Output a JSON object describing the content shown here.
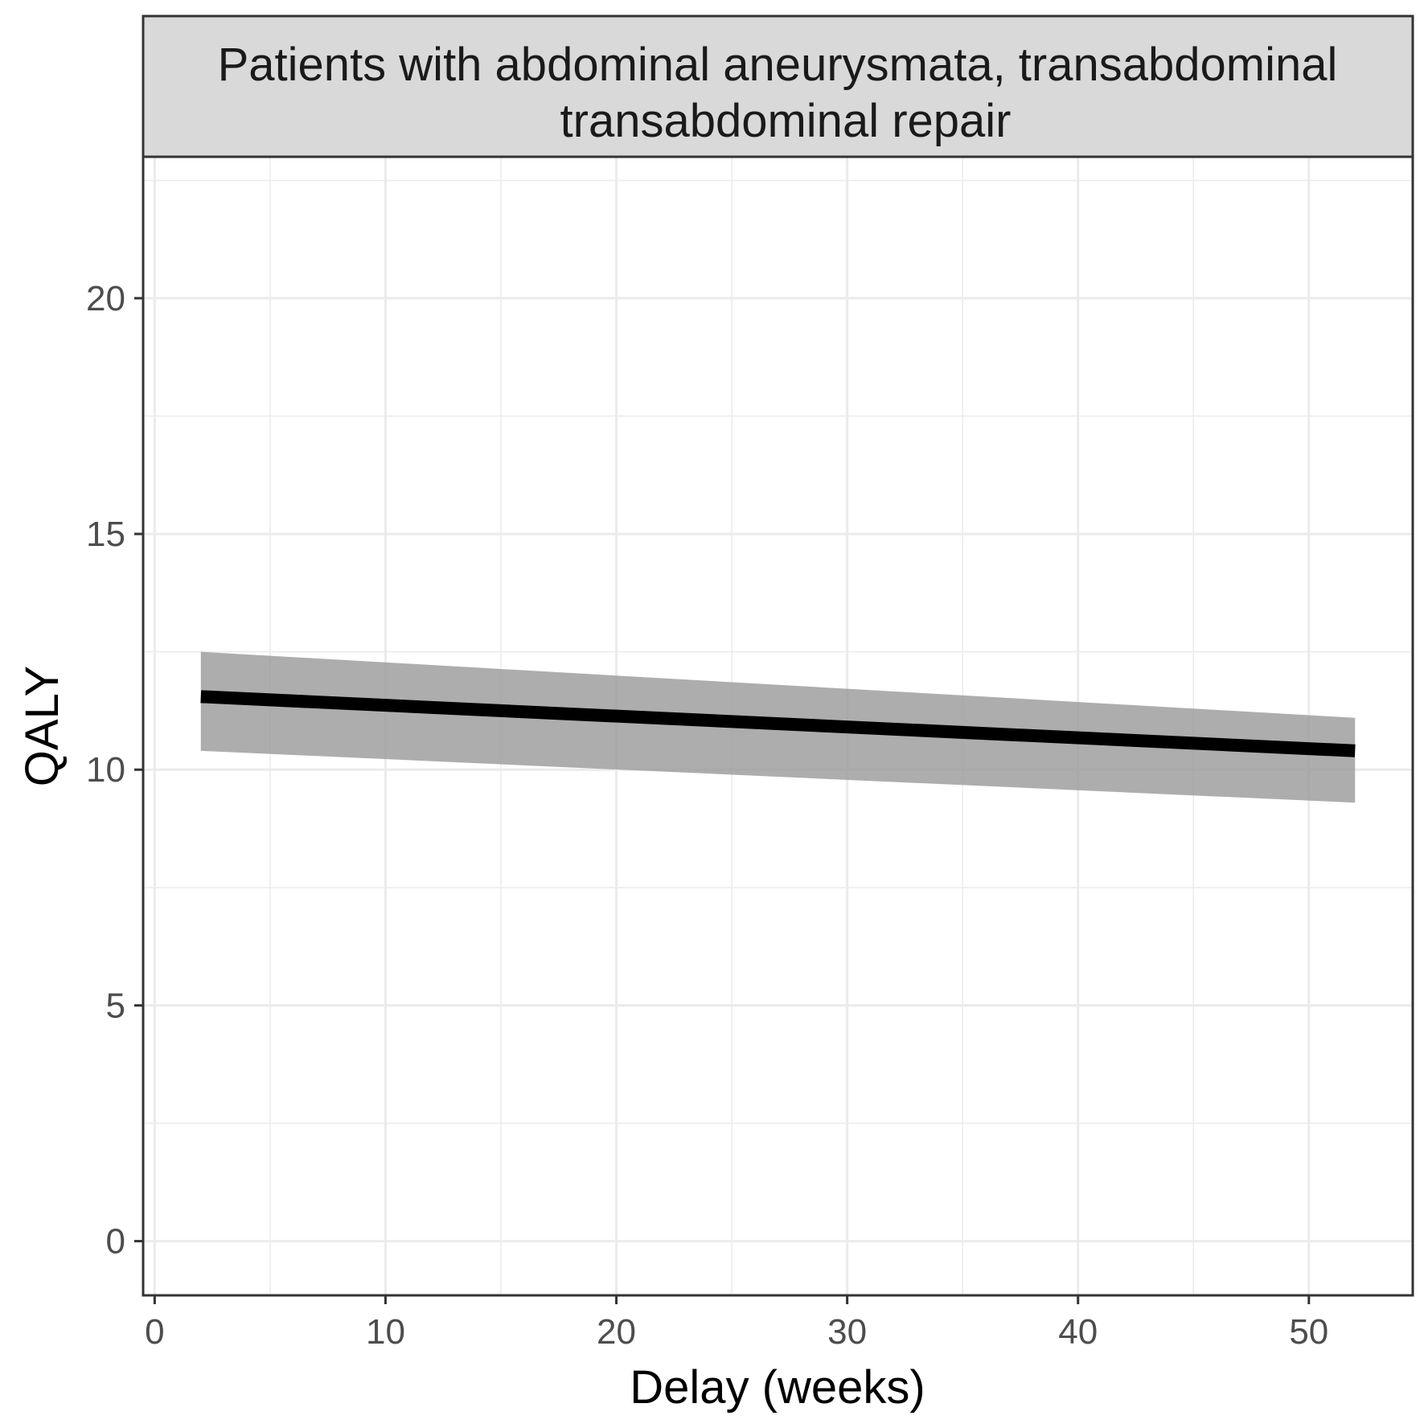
{
  "chart_data": {
    "type": "line",
    "facet_title_lines": [
      "Patients with abdominal aneurysmata, transabdominal",
      "transabdominal repair"
    ],
    "xlabel": "Delay (weeks)",
    "ylabel": "QALY",
    "xlim": [
      -0.5,
      54.5
    ],
    "ylim": [
      -1.15,
      23.0
    ],
    "x_ticks": [
      0,
      10,
      20,
      30,
      40,
      50
    ],
    "y_ticks": [
      0,
      5,
      10,
      15,
      20
    ],
    "x_minor": [
      5,
      15,
      25,
      35,
      45
    ],
    "y_minor": [
      2.5,
      7.5,
      12.5,
      17.5,
      22.5
    ],
    "grid": true,
    "series": [
      {
        "x": [
          2,
          52
        ],
        "y": [
          11.55,
          10.4
        ],
        "ci_lower": [
          10.4,
          9.3
        ],
        "ci_upper": [
          12.5,
          11.1
        ]
      }
    ],
    "colors": {
      "line": "#000000",
      "ribbon": "#999999",
      "strip_bg": "#d9d9d9",
      "grid": "#ebebeb",
      "panel_border": "#333333"
    }
  }
}
